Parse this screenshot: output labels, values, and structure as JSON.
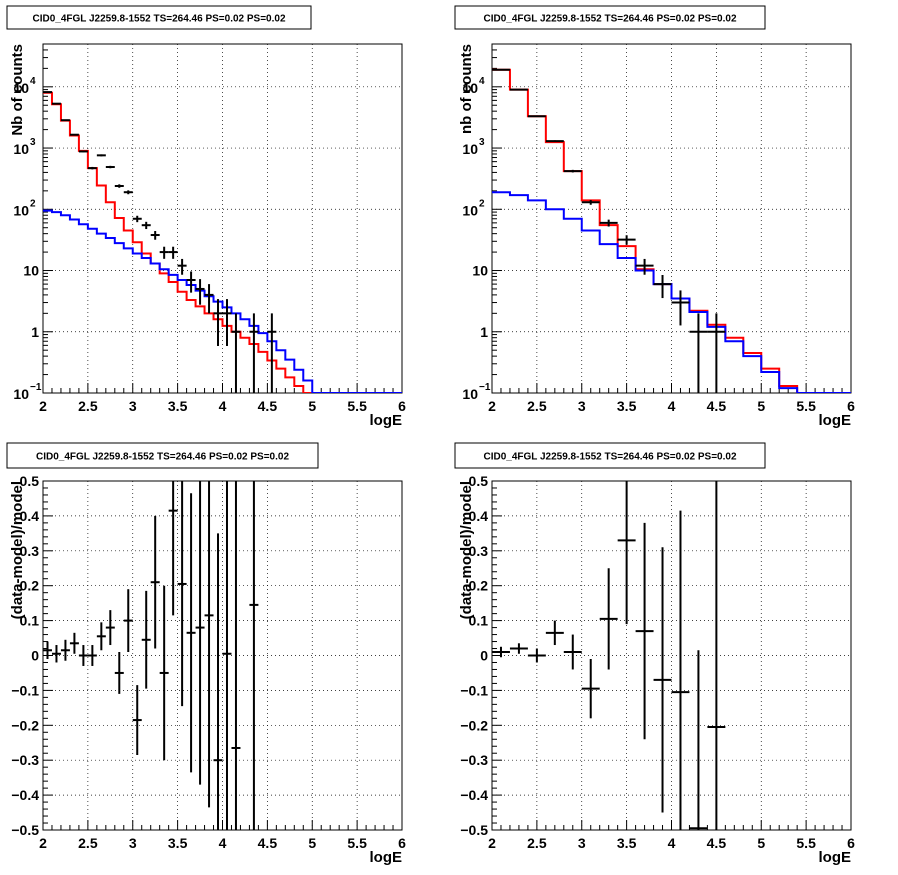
{
  "colors": {
    "total": "#ff0000",
    "background": "#0000ff",
    "data": "#000000"
  },
  "chart_data": [
    {
      "type": "line",
      "title": "CID0_4FGL J2259.8-1552 TS=264.46 PS=0.02 PS=0.02",
      "xlabel": "logE",
      "ylabel": "Nb of counts",
      "xlim": [
        2,
        6
      ],
      "ylim": [
        0.1,
        50000
      ],
      "yscale": "log",
      "grid": true,
      "x_ticks": [
        "2",
        "2.5",
        "3",
        "3.5",
        "4",
        "4.5",
        "5",
        "5.5",
        "6"
      ],
      "y_ticks": [
        {
          "value": 0.1,
          "base": "10",
          "exp": "−1"
        },
        {
          "value": 1,
          "label": "1"
        },
        {
          "value": 10,
          "label": "10"
        },
        {
          "value": 100,
          "base": "10",
          "exp": "2"
        },
        {
          "value": 1000,
          "base": "10",
          "exp": "3"
        },
        {
          "value": 10000,
          "base": "10",
          "exp": "4"
        }
      ],
      "bin_width": 0.1,
      "bin_edges_start": 2.0,
      "series": [
        {
          "color": "#ff0000",
          "style": "step",
          "values": [
            8000,
            5200,
            2800,
            1600,
            900,
            470,
            245,
            130,
            72,
            45,
            29,
            19,
            13,
            9,
            6.5,
            4.5,
            3.3,
            2.6,
            2.0,
            1.6,
            1.25,
            1.0,
            0.8,
            0.63,
            0.47,
            0.34,
            0.25,
            0.18,
            0.13,
            0.1,
            0.1,
            0.1,
            0.1,
            0.1,
            0.1,
            0.1,
            0.1,
            0.1,
            0.1,
            0.1
          ]
        },
        {
          "color": "#0000ff",
          "style": "step",
          "values": [
            95,
            90,
            80,
            68,
            57,
            48,
            40,
            34,
            28,
            23,
            19,
            16,
            13,
            10.5,
            8.5,
            7,
            5.8,
            4.7,
            3.8,
            3.1,
            2.5,
            2.0,
            1.6,
            1.25,
            0.95,
            0.7,
            0.5,
            0.35,
            0.24,
            0.16,
            0.1,
            0.1,
            0.1,
            0.1,
            0.1,
            0.1,
            0.1,
            0.1,
            0.1,
            0.1
          ]
        }
      ],
      "points": [
        {
          "x": 2.05,
          "y": 8200
        },
        {
          "x": 2.15,
          "y": 5300
        },
        {
          "x": 2.25,
          "y": 2850
        },
        {
          "x": 2.35,
          "y": 1650
        },
        {
          "x": 2.45,
          "y": 880
        },
        {
          "x": 2.55,
          "y": 470
        },
        {
          "x": 2.65,
          "y": 760
        },
        {
          "x": 2.75,
          "y": 490
        },
        {
          "x": 2.85,
          "y": 240
        },
        {
          "x": 2.95,
          "y": 190
        },
        {
          "x": 3.05,
          "y": 70
        },
        {
          "x": 3.15,
          "y": 55
        },
        {
          "x": 3.25,
          "y": 38
        },
        {
          "x": 3.35,
          "y": 20
        },
        {
          "x": 3.45,
          "y": 20
        },
        {
          "x": 3.55,
          "y": 12
        },
        {
          "x": 3.65,
          "y": 7
        },
        {
          "x": 3.75,
          "y": 5
        },
        {
          "x": 3.85,
          "y": 4
        },
        {
          "x": 3.95,
          "y": 2
        },
        {
          "x": 4.05,
          "y": 2
        },
        {
          "x": 4.15,
          "y": 1
        },
        {
          "x": 4.35,
          "y": 1
        },
        {
          "x": 4.55,
          "y": 1
        }
      ]
    },
    {
      "type": "line",
      "title": "CID0_4FGL J2259.8-1552 TS=264.46 PS=0.02 PS=0.02",
      "xlabel": "logE",
      "ylabel": "nb of counts",
      "xlim": [
        2,
        6
      ],
      "ylim": [
        0.1,
        50000
      ],
      "yscale": "log",
      "grid": true,
      "x_ticks": [
        "2",
        "2.5",
        "3",
        "3.5",
        "4",
        "4.5",
        "5",
        "5.5",
        "6"
      ],
      "y_ticks": [
        {
          "value": 0.1,
          "base": "10",
          "exp": "−1"
        },
        {
          "value": 1,
          "label": "1"
        },
        {
          "value": 10,
          "label": "10"
        },
        {
          "value": 100,
          "base": "10",
          "exp": "2"
        },
        {
          "value": 1000,
          "base": "10",
          "exp": "3"
        },
        {
          "value": 10000,
          "base": "10",
          "exp": "4"
        }
      ],
      "bin_width": 0.2,
      "bin_edges_start": 2.0,
      "series": [
        {
          "color": "#ff0000",
          "style": "step",
          "values": [
            19000,
            9000,
            3300,
            1250,
            420,
            140,
            55,
            25,
            10.5,
            6,
            3.5,
            2.2,
            1.3,
            0.8,
            0.45,
            0.25,
            0.13,
            0.1,
            0.1,
            0.1
          ]
        },
        {
          "color": "#0000ff",
          "style": "step",
          "values": [
            190,
            170,
            140,
            100,
            70,
            45,
            27,
            16,
            10,
            6,
            3.5,
            2.1,
            1.2,
            0.7,
            0.4,
            0.22,
            0.12,
            0.1,
            0.1,
            0.1
          ]
        }
      ],
      "points": [
        {
          "x": 2.1,
          "y": 19000
        },
        {
          "x": 2.3,
          "y": 9000
        },
        {
          "x": 2.5,
          "y": 3300
        },
        {
          "x": 2.7,
          "y": 1300
        },
        {
          "x": 2.9,
          "y": 420
        },
        {
          "x": 3.1,
          "y": 130
        },
        {
          "x": 3.3,
          "y": 60
        },
        {
          "x": 3.5,
          "y": 32
        },
        {
          "x": 3.7,
          "y": 12
        },
        {
          "x": 3.9,
          "y": 6
        },
        {
          "x": 4.1,
          "y": 3
        },
        {
          "x": 4.3,
          "y": 1
        },
        {
          "x": 4.5,
          "y": 1
        }
      ]
    },
    {
      "type": "scatter",
      "title": "CID0_4FGL J2259.8-1552 TS=264.46 PS=0.02 PS=0.02",
      "xlabel": "logE",
      "ylabel": "(data-model)/model",
      "xlim": [
        2,
        6
      ],
      "ylim": [
        -0.5,
        0.5
      ],
      "yscale": "linear",
      "grid": true,
      "x_ticks": [
        "2",
        "2.5",
        "3",
        "3.5",
        "4",
        "4.5",
        "5",
        "5.5",
        "6"
      ],
      "y_ticks": [
        {
          "value": -0.5,
          "label": "−0.5"
        },
        {
          "value": -0.4,
          "label": "−0.4"
        },
        {
          "value": -0.3,
          "label": "−0.3"
        },
        {
          "value": -0.2,
          "label": "−0.2"
        },
        {
          "value": -0.1,
          "label": "−0.1"
        },
        {
          "value": 0,
          "label": "0"
        },
        {
          "value": 0.1,
          "label": "0.1"
        },
        {
          "value": 0.2,
          "label": "0.2"
        },
        {
          "value": 0.3,
          "label": "0.3"
        },
        {
          "value": 0.4,
          "label": "0.4"
        },
        {
          "value": 0.5,
          "label": "0.5"
        }
      ],
      "bin_width": 0.1,
      "points": [
        {
          "x": 2.05,
          "y": 0.015,
          "err": 0.025
        },
        {
          "x": 2.15,
          "y": 0.005,
          "err": 0.025
        },
        {
          "x": 2.25,
          "y": 0.015,
          "err": 0.03
        },
        {
          "x": 2.35,
          "y": 0.035,
          "err": 0.03
        },
        {
          "x": 2.45,
          "y": 0.0,
          "err": 0.03
        },
        {
          "x": 2.55,
          "y": 0.0,
          "err": 0.03
        },
        {
          "x": 2.65,
          "y": 0.055,
          "err": 0.04
        },
        {
          "x": 2.75,
          "y": 0.08,
          "err": 0.05
        },
        {
          "x": 2.85,
          "y": -0.05,
          "err": 0.06
        },
        {
          "x": 2.95,
          "y": 0.1,
          "err": 0.09
        },
        {
          "x": 3.05,
          "y": -0.185,
          "err": 0.1
        },
        {
          "x": 3.15,
          "y": 0.045,
          "err": 0.14
        },
        {
          "x": 3.25,
          "y": 0.21,
          "err": 0.19
        },
        {
          "x": 3.35,
          "y": -0.05,
          "err": 0.25
        },
        {
          "x": 3.45,
          "y": 0.415,
          "err": 0.3
        },
        {
          "x": 3.55,
          "y": 0.205,
          "err": 0.35
        },
        {
          "x": 3.65,
          "y": 0.065,
          "err": 0.4
        },
        {
          "x": 3.75,
          "y": 0.08,
          "err": 0.45
        },
        {
          "x": 3.85,
          "y": 0.115,
          "err": 0.55
        },
        {
          "x": 3.95,
          "y": -0.3,
          "err": 0.65
        },
        {
          "x": 4.05,
          "y": 0.005,
          "err": 0.7
        },
        {
          "x": 4.15,
          "y": -0.265,
          "err": 0.8
        },
        {
          "x": 4.35,
          "y": 0.145,
          "err": 1.0
        }
      ]
    },
    {
      "type": "scatter",
      "title": "CID0_4FGL J2259.8-1552 TS=264.46 PS=0.02 PS=0.02",
      "xlabel": "logE",
      "ylabel": "(data-model)/model",
      "xlim": [
        2,
        6
      ],
      "ylim": [
        -0.5,
        0.5
      ],
      "yscale": "linear",
      "grid": true,
      "x_ticks": [
        "2",
        "2.5",
        "3",
        "3.5",
        "4",
        "4.5",
        "5",
        "5.5",
        "6"
      ],
      "y_ticks": [
        {
          "value": -0.5,
          "label": "−0.5"
        },
        {
          "value": -0.4,
          "label": "−0.4"
        },
        {
          "value": -0.3,
          "label": "−0.3"
        },
        {
          "value": -0.2,
          "label": "−0.2"
        },
        {
          "value": -0.1,
          "label": "−0.1"
        },
        {
          "value": 0,
          "label": "0"
        },
        {
          "value": 0.1,
          "label": "0.1"
        },
        {
          "value": 0.2,
          "label": "0.2"
        },
        {
          "value": 0.3,
          "label": "0.3"
        },
        {
          "value": 0.4,
          "label": "0.4"
        },
        {
          "value": 0.5,
          "label": "0.5"
        }
      ],
      "bin_width": 0.2,
      "points": [
        {
          "x": 2.1,
          "y": 0.01,
          "err": 0.015
        },
        {
          "x": 2.3,
          "y": 0.02,
          "err": 0.015
        },
        {
          "x": 2.5,
          "y": 0.0,
          "err": 0.02
        },
        {
          "x": 2.7,
          "y": 0.065,
          "err": 0.035
        },
        {
          "x": 2.9,
          "y": 0.01,
          "err": 0.05
        },
        {
          "x": 3.1,
          "y": -0.095,
          "err": 0.085
        },
        {
          "x": 3.3,
          "y": 0.105,
          "err": 0.145
        },
        {
          "x": 3.5,
          "y": 0.33,
          "err": 0.24
        },
        {
          "x": 3.7,
          "y": 0.07,
          "err": 0.31
        },
        {
          "x": 3.9,
          "y": -0.07,
          "err": 0.38
        },
        {
          "x": 4.1,
          "y": -0.105,
          "err": 0.52
        },
        {
          "x": 4.3,
          "y": -0.495,
          "err": 0.51
        },
        {
          "x": 4.5,
          "y": -0.205,
          "err": 1.1
        }
      ]
    }
  ]
}
